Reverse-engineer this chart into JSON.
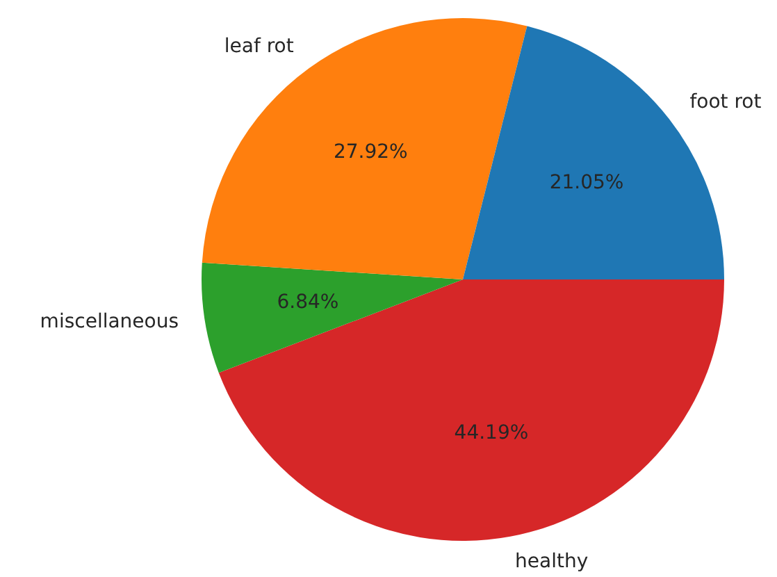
{
  "chart_data": {
    "type": "pie",
    "categories": [
      "foot rot",
      "leaf rot",
      "miscellaneous",
      "healthy"
    ],
    "values": [
      21.05,
      27.92,
      6.84,
      44.19
    ],
    "colors": [
      "#1f77b4",
      "#ff7f0e",
      "#2ca02c",
      "#d62728"
    ],
    "value_labels": [
      "21.05%",
      "27.92%",
      "6.84%",
      "44.19%"
    ],
    "legend": false
  }
}
